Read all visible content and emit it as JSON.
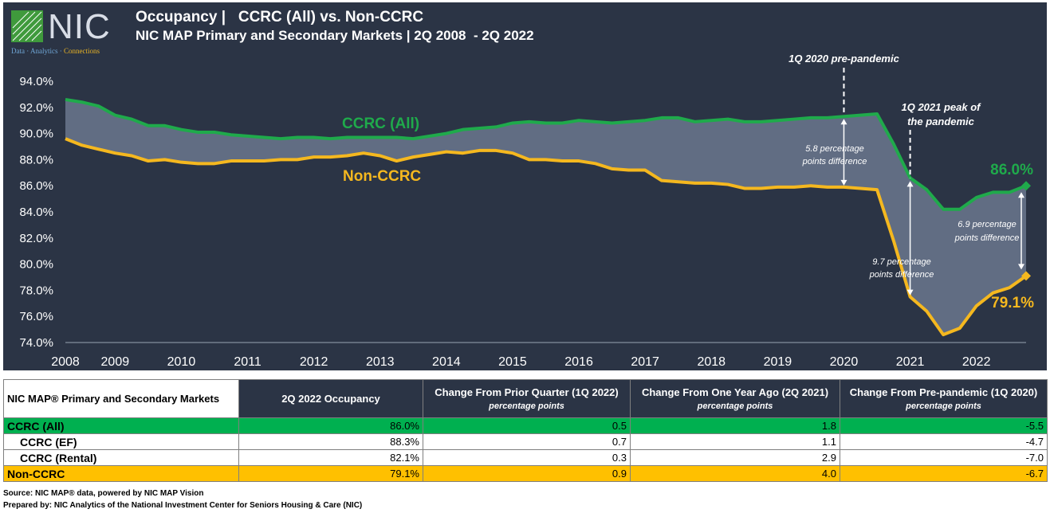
{
  "header": {
    "logo_text": "NIC",
    "logo_tag_a": "Data · Analytics · ",
    "logo_tag_b": "Connections",
    "title": "Occupancy |   CCRC (All) vs. Non-CCRC",
    "subtitle": "NIC MAP Primary and Secondary Markets | 2Q 2008  - 2Q 2022"
  },
  "colors": {
    "background": "#2b3445",
    "ccrc": "#1faa4b",
    "nonccrc": "#f5b81f",
    "fill": "#6b788e"
  },
  "chart_data": {
    "type": "line",
    "x_label_ticks": [
      "2008",
      "2009",
      "2010",
      "2011",
      "2012",
      "2013",
      "2014",
      "2015",
      "2016",
      "2017",
      "2018",
      "2019",
      "2020",
      "2021",
      "2022"
    ],
    "y_ticks": [
      "74.0%",
      "76.0%",
      "78.0%",
      "80.0%",
      "82.0%",
      "84.0%",
      "86.0%",
      "88.0%",
      "90.0%",
      "92.0%",
      "94.0%"
    ],
    "ylim": [
      74,
      94
    ],
    "x_start": "2Q 2008",
    "x_end": "2Q 2022",
    "series": [
      {
        "name": "CCRC (All)",
        "values": [
          92.6,
          92.4,
          92.1,
          91.4,
          91.1,
          90.6,
          90.6,
          90.3,
          90.1,
          90.1,
          89.9,
          89.8,
          89.7,
          89.6,
          89.7,
          89.7,
          89.6,
          89.7,
          89.7,
          89.7,
          89.7,
          89.6,
          89.8,
          90.0,
          90.3,
          90.4,
          90.5,
          90.8,
          90.9,
          90.8,
          90.8,
          91.0,
          90.9,
          90.8,
          90.9,
          91.0,
          91.2,
          91.2,
          90.9,
          91.0,
          91.1,
          90.9,
          90.9,
          91.0,
          91.1,
          91.2,
          91.2,
          91.3,
          91.4,
          91.5,
          89.2,
          86.6,
          85.7,
          84.2,
          84.2,
          85.1,
          85.5,
          85.5,
          86.0
        ]
      },
      {
        "name": "Non-CCRC",
        "values": [
          89.6,
          89.1,
          88.8,
          88.5,
          88.3,
          87.9,
          88.0,
          87.8,
          87.7,
          87.7,
          87.9,
          87.9,
          87.9,
          88.0,
          88.0,
          88.2,
          88.2,
          88.3,
          88.5,
          88.3,
          87.9,
          88.2,
          88.4,
          88.6,
          88.5,
          88.7,
          88.7,
          88.5,
          88.0,
          88.0,
          87.9,
          87.9,
          87.7,
          87.3,
          87.2,
          87.2,
          86.4,
          86.3,
          86.2,
          86.2,
          86.1,
          85.8,
          85.8,
          85.9,
          85.9,
          86.0,
          85.9,
          85.9,
          85.8,
          85.7,
          81.8,
          77.5,
          76.4,
          74.6,
          75.1,
          76.8,
          77.8,
          78.2,
          79.1
        ]
      }
    ],
    "annotations": {
      "series_label_ccrc": "CCRC (All)",
      "series_label_non": "Non-CCRC",
      "prepandemic": "1Q 2020 pre-pandemic",
      "peak_line1": "1Q 2021 peak of",
      "peak_line2": "the pandemic",
      "diff1_line1": "5.8 percentage",
      "diff1_line2": "points difference",
      "diff2_line1": "9.7 percentage",
      "diff2_line2": "points difference",
      "diff3_line1": "6.9 percentage",
      "diff3_line2": "points difference",
      "end_ccrc": "86.0%",
      "end_non": "79.1%"
    }
  },
  "table": {
    "headers": [
      {
        "main": "NIC MAP® Primary and Secondary Markets",
        "sub": ""
      },
      {
        "main": "2Q 2022 Occupancy",
        "sub": ""
      },
      {
        "main": "Change From Prior Quarter (1Q 2022)",
        "sub": "percentage points"
      },
      {
        "main": "Change From One Year Ago (2Q 2021)",
        "sub": "percentage points"
      },
      {
        "main": "Change From Pre-pandemic (1Q 2020)",
        "sub": "percentage points"
      }
    ],
    "rows": [
      {
        "label": "CCRC (All)",
        "occ": "86.0%",
        "q": "0.5",
        "y": "1.8",
        "p": "-5.5"
      },
      {
        "label": "CCRC (EF)",
        "occ": "88.3%",
        "q": "0.7",
        "y": "1.1",
        "p": "-4.7"
      },
      {
        "label": "CCRC (Rental)",
        "occ": "82.1%",
        "q": "0.3",
        "y": "2.9",
        "p": "-7.0"
      },
      {
        "label": "Non-CCRC",
        "occ": "79.1%",
        "q": "0.9",
        "y": "4.0",
        "p": "-6.7"
      }
    ]
  },
  "footer": {
    "source": "Source: NIC MAP® data, powered by NIC MAP Vision",
    "prepared": "Prepared by: NIC Analytics of the National Investment Center for Seniors Housing & Care (NIC)"
  }
}
